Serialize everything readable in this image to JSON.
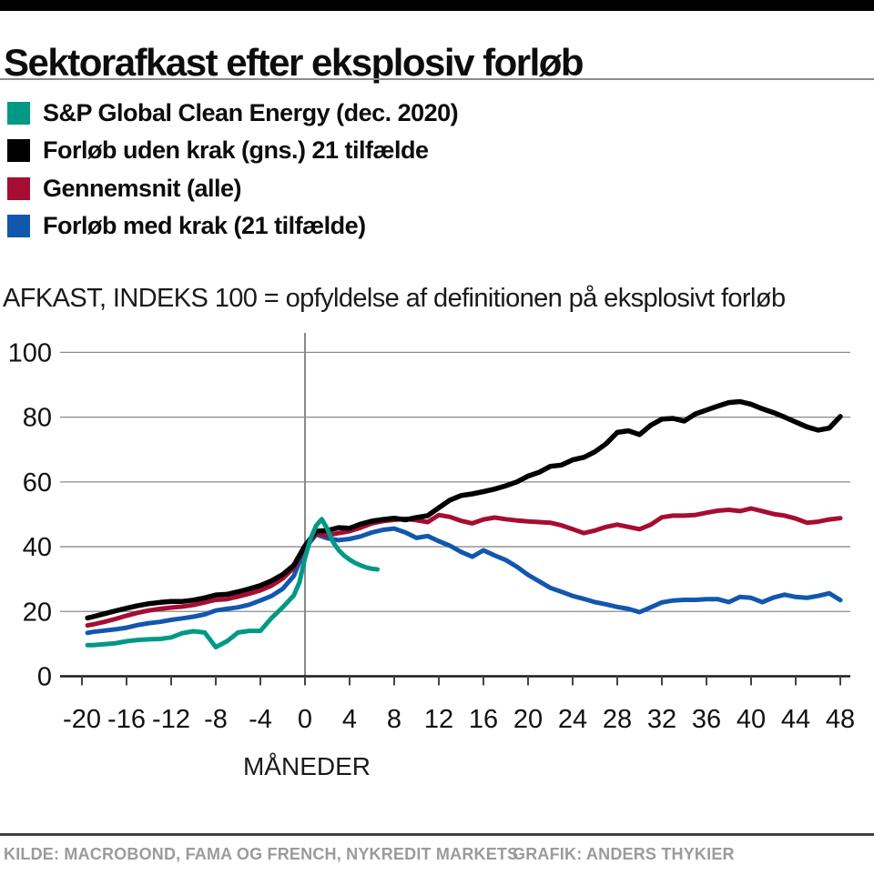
{
  "header": {
    "title": "Sektorafkast efter eksplosiv forløb"
  },
  "chart_data": {
    "type": "line",
    "title": "Sektorafkast efter eksplosiv forløb",
    "subtitle": "AFKAST, INDEKS 100 = opfyldelse af definitionen på eksplosivt forløb",
    "xlabel": "MÅNEDER",
    "ylabel": "AFKAST, INDEKS 100",
    "x_ticks": [
      -20,
      -16,
      -12,
      -8,
      -4,
      0,
      4,
      8,
      12,
      16,
      20,
      24,
      28,
      32,
      36,
      40,
      44,
      48
    ],
    "y_ticks": [
      0,
      20,
      40,
      60,
      80,
      100
    ],
    "xlim": [
      -22,
      49.2
    ],
    "ylim": [
      0,
      105.5
    ],
    "grid": "horizontal",
    "zero_month_vertical_line": true,
    "legend_position": "top-left",
    "series": [
      {
        "name": "S&P Global Clean Energy (dec. 2020)",
        "color": "#009985",
        "x": [
          -19.5,
          -19,
          -18,
          -17,
          -16,
          -15,
          -14,
          -13,
          -12,
          -11,
          -10,
          -9,
          -8,
          -7,
          -6,
          -5,
          -4,
          -3,
          -2,
          -1,
          -0.5,
          0,
          0.5,
          1,
          1.5,
          2,
          2.5,
          3,
          3.5,
          4,
          4.5,
          5,
          5.5,
          6,
          6.5
        ],
        "values": [
          9.6,
          9.6,
          9.9,
          10.2,
          10.8,
          11.2,
          11.4,
          11.5,
          12.0,
          13.3,
          13.9,
          13.5,
          9.0,
          10.8,
          13.5,
          14.0,
          14.0,
          18.0,
          21.3,
          25.0,
          29.0,
          36.5,
          42.5,
          46.5,
          48.5,
          45.5,
          41.5,
          39.0,
          37.3,
          36.0,
          35.0,
          34.2,
          33.6,
          33.2,
          33.0
        ]
      },
      {
        "name": "Forløb uden krak (gns.) 21 tilfælde",
        "color": "#000000",
        "x": [
          -19.5,
          -19,
          -18,
          -17,
          -16,
          -15,
          -14,
          -13,
          -12,
          -11,
          -10,
          -9,
          -8,
          -7,
          -6,
          -5,
          -4,
          -3,
          -2,
          -1,
          0,
          1,
          2,
          3,
          4,
          5,
          6,
          7,
          8,
          9,
          10,
          11,
          12,
          13,
          14,
          15,
          16,
          17,
          18,
          19,
          20,
          21,
          22,
          23,
          24,
          25,
          26,
          27,
          28,
          29,
          30,
          31,
          32,
          33,
          34,
          35,
          36,
          37,
          38,
          39,
          40,
          41,
          42,
          43,
          44,
          45,
          46,
          47,
          48
        ],
        "values": [
          18.0,
          18.4,
          19.3,
          20.2,
          21.0,
          21.8,
          22.4,
          22.8,
          23.1,
          23.1,
          23.5,
          24.2,
          25.1,
          25.3,
          26.1,
          27.0,
          28.0,
          29.5,
          31.4,
          34.3,
          40.3,
          44.8,
          45.0,
          45.9,
          45.7,
          47.0,
          47.9,
          48.4,
          48.8,
          48.3,
          49.0,
          49.6,
          52.0,
          54.4,
          55.8,
          56.3,
          57.0,
          57.8,
          58.8,
          60.0,
          61.8,
          63.0,
          64.8,
          65.2,
          66.8,
          67.6,
          69.3,
          71.8,
          75.3,
          75.8,
          74.6,
          77.5,
          79.4,
          79.6,
          78.8,
          81.0,
          82.2,
          83.4,
          84.5,
          84.8,
          84.0,
          82.6,
          81.4,
          80.0,
          78.5,
          77.0,
          76.0,
          76.6,
          80.2
        ]
      },
      {
        "name": "Gennemsnit (alle)",
        "color": "#a60d33",
        "x": [
          -19.5,
          -19,
          -18,
          -17,
          -16,
          -15,
          -14,
          -13,
          -12,
          -11,
          -10,
          -9,
          -8,
          -7,
          -6,
          -5,
          -4,
          -3,
          -2,
          -1,
          0,
          1,
          2,
          3,
          4,
          5,
          6,
          7,
          8,
          9,
          10,
          11,
          12,
          13,
          14,
          15,
          16,
          17,
          18,
          19,
          20,
          21,
          22,
          23,
          24,
          25,
          26,
          27,
          28,
          29,
          30,
          31,
          32,
          33,
          34,
          35,
          36,
          37,
          38,
          39,
          40,
          41,
          42,
          43,
          44,
          45,
          46,
          47,
          48
        ],
        "values": [
          15.7,
          16.0,
          16.8,
          17.7,
          18.7,
          19.6,
          20.3,
          20.8,
          21.2,
          21.5,
          22.0,
          22.8,
          23.6,
          23.8,
          24.6,
          25.5,
          26.5,
          28.0,
          30.2,
          33.5,
          40.0,
          44.0,
          43.5,
          44.2,
          44.8,
          45.9,
          47.2,
          47.9,
          48.3,
          48.6,
          48.2,
          47.6,
          49.8,
          49.2,
          48.0,
          47.2,
          48.4,
          49.0,
          48.5,
          48.1,
          47.8,
          47.6,
          47.4,
          46.6,
          45.4,
          44.2,
          45.0,
          46.1,
          46.8,
          46.1,
          45.4,
          46.8,
          49.1,
          49.6,
          49.6,
          49.8,
          50.5,
          51.1,
          51.4,
          51.0,
          51.8,
          51.0,
          50.1,
          49.6,
          48.7,
          47.4,
          47.7,
          48.4,
          48.8
        ]
      },
      {
        "name": "Forløb med krak (21 tilfælde)",
        "color": "#1257ae",
        "x": [
          -19.5,
          -19,
          -18,
          -17,
          -16,
          -15,
          -14,
          -13,
          -12,
          -11,
          -10,
          -9,
          -8,
          -7,
          -6,
          -5,
          -4,
          -3,
          -2,
          -1,
          0,
          1,
          2,
          3,
          4,
          5,
          6,
          7,
          8,
          9,
          10,
          11,
          12,
          13,
          14,
          15,
          16,
          17,
          18,
          19,
          20,
          21,
          22,
          23,
          24,
          25,
          26,
          27,
          28,
          29,
          30,
          31,
          32,
          33,
          34,
          35,
          36,
          37,
          38,
          39,
          40,
          41,
          42,
          43,
          44,
          45,
          46,
          47,
          48
        ],
        "values": [
          13.4,
          13.7,
          14.1,
          14.5,
          15.0,
          15.8,
          16.4,
          16.8,
          17.4,
          17.9,
          18.4,
          19.1,
          20.3,
          20.8,
          21.3,
          22.1,
          23.4,
          24.8,
          27.0,
          31.0,
          39.4,
          43.8,
          42.6,
          42.0,
          42.4,
          43.2,
          44.4,
          45.2,
          45.6,
          44.4,
          42.7,
          43.3,
          41.7,
          40.3,
          38.4,
          36.9,
          38.9,
          37.3,
          35.9,
          33.8,
          31.3,
          29.3,
          27.3,
          26.1,
          24.8,
          23.9,
          22.9,
          22.2,
          21.4,
          20.8,
          19.8,
          21.3,
          22.8,
          23.4,
          23.6,
          23.6,
          23.8,
          23.8,
          22.9,
          24.5,
          24.2,
          22.9,
          24.3,
          25.2,
          24.5,
          24.2,
          24.8,
          25.6,
          23.5
        ]
      }
    ]
  },
  "footer": {
    "source": "KILDE: MACROBOND, FAMA OG FRENCH, NYKREDIT MARKETS",
    "credit": "GRAFIK: ANDERS THYKIER"
  },
  "colors": {
    "teal": "#009985",
    "black": "#000000",
    "crimson": "#a60d33",
    "blue": "#1257ae",
    "grid": "#8a8a8a",
    "axis": "#1a1a1a",
    "muted_text": "#9b9b9b"
  }
}
